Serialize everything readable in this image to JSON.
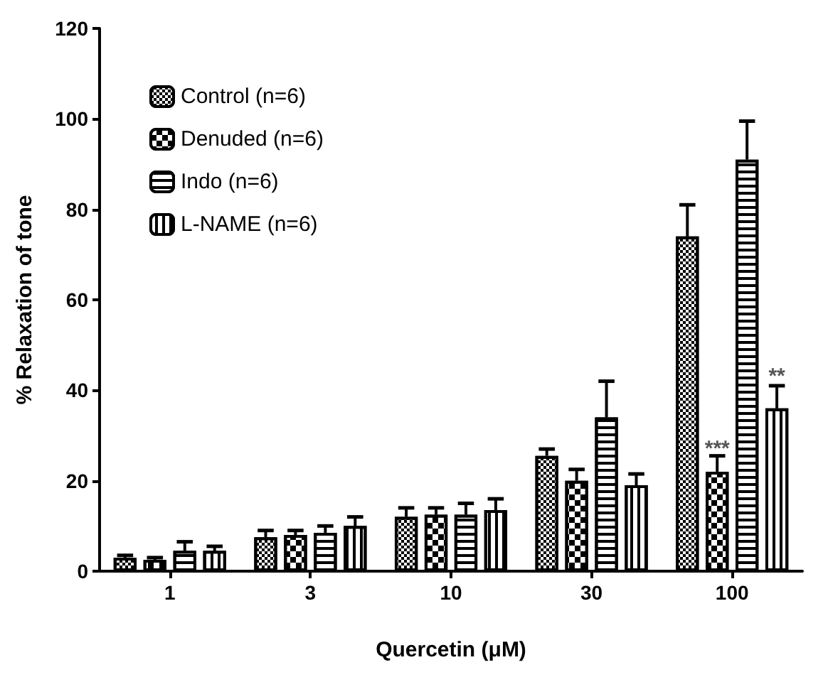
{
  "chart_data": {
    "type": "bar",
    "xlabel": "Quercetin (μM)",
    "ylabel": "% Relaxation of tone",
    "categories": [
      "1",
      "3",
      "10",
      "30",
      "100"
    ],
    "series": [
      {
        "name": "Control (n=6)",
        "color": "#000000",
        "values": [
          3,
          7.5,
          12,
          25.5,
          74
        ],
        "errors": [
          0.5,
          1.5,
          2,
          1.5,
          7
        ]
      },
      {
        "name": "Denuded (n=6)",
        "color": "#000000",
        "values": [
          2.5,
          8,
          12.5,
          20,
          22
        ],
        "errors": [
          0.5,
          1,
          1.5,
          2.5,
          3.5
        ]
      },
      {
        "name": "Indo (n=6)",
        "color": "#000000",
        "values": [
          4.5,
          8.5,
          12.5,
          34,
          91
        ],
        "errors": [
          2,
          1.5,
          2.5,
          8,
          8.5
        ]
      },
      {
        "name": "L-NAME (n=6)",
        "color": "#000000",
        "values": [
          4.5,
          10,
          13.5,
          19,
          36
        ],
        "errors": [
          1,
          2,
          2.5,
          2.5,
          5
        ]
      }
    ],
    "annotations": [
      {
        "text": "***",
        "x": "100",
        "y": 27
      },
      {
        "text": "**",
        "x": "100",
        "y": 43
      }
    ],
    "ylim": [
      0,
      120
    ],
    "yticks": [
      0,
      20,
      40,
      60,
      80,
      100,
      120
    ],
    "grid": false,
    "legend": "top left"
  }
}
